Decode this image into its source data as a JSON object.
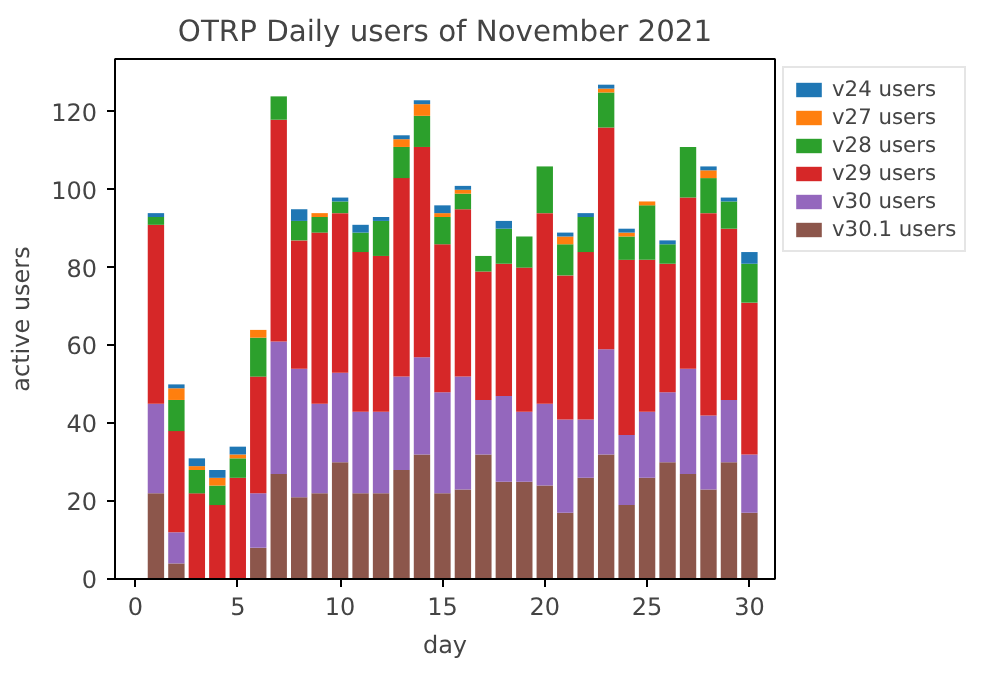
{
  "chart_data": {
    "type": "bar",
    "stacked": true,
    "title": "OTRP Daily users of November 2021",
    "xlabel": "day",
    "ylabel": "active users",
    "x": [
      1,
      2,
      3,
      4,
      5,
      6,
      7,
      8,
      9,
      10,
      11,
      12,
      13,
      14,
      15,
      16,
      17,
      18,
      19,
      20,
      21,
      22,
      23,
      24,
      25,
      26,
      27,
      28,
      29,
      30
    ],
    "series": [
      {
        "name": "v30.1 users",
        "color": "#8c564b",
        "values": [
          22,
          4,
          0,
          0,
          0,
          8,
          27,
          21,
          22,
          30,
          22,
          22,
          28,
          32,
          22,
          23,
          32,
          25,
          25,
          24,
          17,
          26,
          32,
          19,
          26,
          30,
          27,
          23,
          30,
          17
        ]
      },
      {
        "name": "v30 users",
        "color": "#9467bd",
        "values": [
          23,
          8,
          0,
          0,
          0,
          14,
          34,
          33,
          23,
          23,
          21,
          21,
          24,
          25,
          26,
          29,
          14,
          22,
          18,
          21,
          24,
          15,
          27,
          18,
          17,
          18,
          27,
          19,
          16,
          15
        ]
      },
      {
        "name": "v29 users",
        "color": "#d62728",
        "values": [
          46,
          26,
          22,
          19,
          26,
          30,
          57,
          33,
          44,
          41,
          41,
          40,
          51,
          54,
          38,
          43,
          33,
          34,
          37,
          49,
          37,
          43,
          57,
          45,
          39,
          33,
          44,
          52,
          44,
          39
        ]
      },
      {
        "name": "v28 users",
        "color": "#2ca02c",
        "values": [
          2,
          8,
          6,
          5,
          5,
          10,
          6,
          5,
          4,
          3,
          5,
          9,
          8,
          8,
          7,
          4,
          4,
          9,
          8,
          12,
          8,
          9,
          9,
          6,
          14,
          5,
          13,
          9,
          7,
          10
        ]
      },
      {
        "name": "v27 users",
        "color": "#ff7f0e",
        "values": [
          0,
          3,
          1,
          2,
          1,
          2,
          0,
          0,
          1,
          0,
          0,
          0,
          2,
          3,
          1,
          1,
          0,
          0,
          0,
          0,
          2,
          0,
          1,
          1,
          1,
          0,
          0,
          2,
          0,
          0
        ]
      },
      {
        "name": "v24 users",
        "color": "#1f77b4",
        "values": [
          1,
          1,
          2,
          2,
          2,
          0,
          0,
          3,
          0,
          1,
          2,
          1,
          1,
          1,
          2,
          1,
          0,
          2,
          0,
          0,
          1,
          1,
          1,
          1,
          0,
          1,
          0,
          1,
          1,
          3
        ]
      }
    ],
    "xlim": [
      -1,
      31.25
    ],
    "ylim": [
      0,
      133.6
    ],
    "xticks": [
      0,
      5,
      10,
      15,
      20,
      25,
      30
    ],
    "yticks": [
      0,
      20,
      40,
      60,
      80,
      100,
      120
    ],
    "grid": false,
    "legend": "right"
  }
}
